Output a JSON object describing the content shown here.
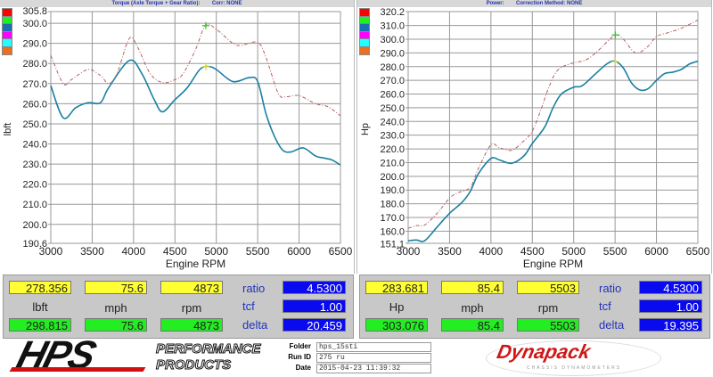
{
  "left_header": {
    "title": "Torque (Axle Torque + Gear Ratio):",
    "corr": "Corr: NONE"
  },
  "right_header": {
    "title": "Power:",
    "corr": "Correction Method: NONE"
  },
  "legend_colors": [
    "#ff0000",
    "#22ee22",
    "#1a6fb0",
    "#ff00ff",
    "#22ffff",
    "#e87020"
  ],
  "chart_data": [
    {
      "type": "line",
      "xlabel": "Engine RPM",
      "ylabel": "lbft",
      "xlim": [
        3000,
        6500
      ],
      "ylim": [
        190.6,
        305.8
      ],
      "xticks": [
        3000,
        3500,
        4000,
        4500,
        5000,
        5500,
        6000,
        6500
      ],
      "yticks": [
        "305.8",
        "300.0",
        "290.0",
        "280.0",
        "270.0",
        "260.0",
        "250.0",
        "240.0",
        "230.0",
        "220.0",
        "210.0",
        "200.0",
        "190.6"
      ],
      "grid": true,
      "series": [
        {
          "color": "#1a80a0",
          "style": "solid",
          "x": [
            3000,
            3150,
            3300,
            3450,
            3600,
            3700,
            3950,
            4100,
            4250,
            4350,
            4500,
            4650,
            4800,
            4900,
            5000,
            5200,
            5400,
            5500,
            5600,
            5700,
            5800,
            5900,
            6050,
            6200,
            6300,
            6400,
            6500
          ],
          "y": [
            269,
            253,
            258,
            260.5,
            260.5,
            268,
            281.5,
            275,
            262,
            256,
            262,
            268,
            277,
            278.5,
            277,
            271,
            273,
            271,
            255,
            244,
            237,
            236,
            238,
            234,
            233,
            232,
            229.5
          ]
        },
        {
          "color": "#b06060",
          "style": "dashed",
          "x": [
            3000,
            3150,
            3250,
            3450,
            3600,
            3700,
            3800,
            3950,
            4050,
            4200,
            4350,
            4500,
            4600,
            4750,
            4870,
            5000,
            5200,
            5300,
            5500,
            5600,
            5750,
            5850,
            6000,
            6200,
            6350,
            6500
          ],
          "y": [
            284,
            270,
            272,
            277,
            274,
            270,
            275,
            292.5,
            288,
            275,
            270.5,
            272,
            275,
            287,
            299,
            297,
            290,
            289,
            290.5,
            283,
            265,
            263.5,
            264,
            260,
            258.5,
            254
          ]
        }
      ],
      "markers": [
        {
          "x": 4873,
          "y": 298.8,
          "color": "#33cc33"
        },
        {
          "x": 4873,
          "y": 278.4,
          "color": "#dddd33"
        }
      ]
    },
    {
      "type": "line",
      "xlabel": "Engine RPM",
      "ylabel": "Hp",
      "xlim": [
        3000,
        6500
      ],
      "ylim": [
        151.1,
        320.2
      ],
      "xticks": [
        3000,
        3500,
        4000,
        4500,
        5000,
        5500,
        6000,
        6500
      ],
      "yticks": [
        "320.2",
        "310.0",
        "300.0",
        "290.0",
        "280.0",
        "270.0",
        "260.0",
        "250.0",
        "240.0",
        "230.0",
        "220.0",
        "210.0",
        "200.0",
        "190.0",
        "180.0",
        "170.0",
        "160.0",
        "151.1"
      ],
      "grid": true,
      "series": [
        {
          "color": "#1a80a0",
          "style": "solid",
          "x": [
            3000,
            3100,
            3200,
            3350,
            3500,
            3650,
            3750,
            3850,
            4000,
            4100,
            4250,
            4400,
            4500,
            4650,
            4750,
            4850,
            5000,
            5100,
            5250,
            5400,
            5500,
            5600,
            5700,
            5800,
            5900,
            6000,
            6100,
            6200,
            6300,
            6400,
            6500
          ],
          "y": [
            153,
            153.5,
            153,
            163,
            173,
            181,
            189,
            202,
            213,
            212,
            209.5,
            215,
            224,
            236,
            250,
            260,
            265,
            266,
            274,
            282,
            284,
            279,
            268,
            263,
            264,
            270,
            275,
            276,
            278,
            282,
            284
          ]
        },
        {
          "color": "#b06060",
          "style": "dashed",
          "x": [
            3000,
            3100,
            3200,
            3350,
            3500,
            3600,
            3750,
            3850,
            4000,
            4100,
            4250,
            4400,
            4500,
            4600,
            4700,
            4800,
            4950,
            5150,
            5300,
            5500,
            5600,
            5750,
            5900,
            6000,
            6150,
            6300,
            6500
          ],
          "y": [
            162,
            164,
            164.5,
            173,
            184,
            188,
            192,
            206,
            223,
            221,
            219,
            226,
            233,
            248,
            265,
            277,
            282,
            285,
            292,
            303,
            300,
            290,
            295,
            302,
            305,
            308,
            314
          ]
        }
      ],
      "markers": [
        {
          "x": 5503,
          "y": 303.1,
          "color": "#33cc33"
        },
        {
          "x": 5503,
          "y": 283.7,
          "color": "#dddd33"
        }
      ]
    }
  ],
  "left_values": {
    "top": [
      "278.356",
      "75.6",
      "4873"
    ],
    "labels": [
      "lbft",
      "mph",
      "rpm"
    ],
    "bottom": [
      "298.815",
      "75.6",
      "4873"
    ],
    "ratio_label": "ratio",
    "ratio": "4.5300",
    "tcf_label": "tcf",
    "tcf": "1.00",
    "delta_label": "delta",
    "delta": "20.459"
  },
  "right_values": {
    "top": [
      "283.681",
      "85.4",
      "5503"
    ],
    "labels": [
      "Hp",
      "mph",
      "rpm"
    ],
    "bottom": [
      "303.076",
      "85.4",
      "5503"
    ],
    "ratio_label": "ratio",
    "ratio": "4.5300",
    "tcf_label": "tcf",
    "tcf": "1.00",
    "delta_label": "delta",
    "delta": "19.395"
  },
  "footer": {
    "logo": "HPS",
    "brand_line1": "PERFORMANCE",
    "brand_line2": "PRODUCTS",
    "folder_label": "Folder",
    "folder": "hps_15sti",
    "run_label": "Run ID",
    "run": "275 ru",
    "date_label": "Date",
    "date": "2015-04-23 11:39:32",
    "dyno_logo": "Dynapack",
    "dyno_sub": "CHASSIS DYNAMOMETERS"
  }
}
